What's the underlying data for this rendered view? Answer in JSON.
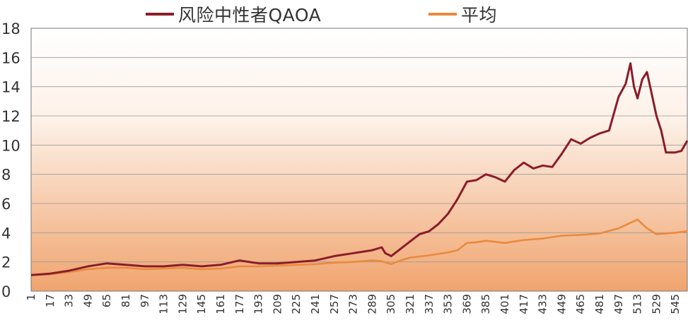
{
  "chart_data": {
    "type": "line",
    "title": "",
    "xlabel": "",
    "ylabel": "",
    "ylim": [
      0,
      18
    ],
    "yticks": [
      0,
      2,
      4,
      6,
      8,
      10,
      12,
      14,
      16,
      18
    ],
    "xlim": [
      1,
      555
    ],
    "xticks": [
      "1",
      "17",
      "33",
      "49",
      "65",
      "81",
      "97",
      "113",
      "129",
      "145",
      "161",
      "177",
      "193",
      "209",
      "225",
      "241",
      "257",
      "273",
      "289",
      "305",
      "321",
      "337",
      "353",
      "369",
      "385",
      "401",
      "417",
      "433",
      "449",
      "465",
      "481",
      "497",
      "513",
      "529",
      "545"
    ],
    "legend": "top",
    "grid": "horizontal",
    "colors": {
      "qaoa": "#8b1c2a",
      "avg": "#e98a3f",
      "bg_top": "#ffffff",
      "bg_bottom": "#f0a46e"
    },
    "series": [
      {
        "name": "风险中性者QAOA",
        "x": [
          1,
          17,
          33,
          49,
          65,
          81,
          97,
          113,
          129,
          145,
          161,
          177,
          193,
          209,
          225,
          241,
          257,
          273,
          289,
          297,
          300,
          305,
          313,
          321,
          329,
          337,
          345,
          353,
          361,
          369,
          377,
          385,
          393,
          401,
          409,
          417,
          425,
          433,
          441,
          449,
          457,
          465,
          473,
          481,
          489,
          497,
          503,
          507,
          510,
          513,
          517,
          521,
          525,
          529,
          533,
          537,
          545,
          550,
          555
        ],
        "y": [
          1.1,
          1.2,
          1.4,
          1.7,
          1.9,
          1.8,
          1.7,
          1.7,
          1.8,
          1.7,
          1.8,
          2.1,
          1.9,
          1.9,
          2.0,
          2.1,
          2.4,
          2.6,
          2.8,
          3.0,
          2.6,
          2.4,
          2.9,
          3.4,
          3.9,
          4.1,
          4.6,
          5.3,
          6.3,
          7.5,
          7.6,
          8.0,
          7.8,
          7.5,
          8.3,
          8.8,
          8.4,
          8.6,
          8.5,
          9.4,
          10.4,
          10.1,
          10.5,
          10.8,
          11.0,
          13.3,
          14.2,
          15.6,
          14.0,
          13.2,
          14.5,
          15.0,
          13.5,
          12.0,
          11.0,
          9.5,
          9.5,
          9.6,
          10.3
        ]
      },
      {
        "name": "平均",
        "x": [
          1,
          17,
          33,
          49,
          65,
          81,
          97,
          113,
          129,
          145,
          161,
          177,
          193,
          209,
          225,
          241,
          257,
          273,
          289,
          297,
          305,
          313,
          321,
          337,
          353,
          361,
          369,
          377,
          385,
          401,
          417,
          433,
          449,
          465,
          481,
          497,
          505,
          513,
          521,
          529,
          545,
          555
        ],
        "y": [
          1.1,
          1.15,
          1.3,
          1.5,
          1.6,
          1.6,
          1.5,
          1.55,
          1.6,
          1.5,
          1.55,
          1.7,
          1.7,
          1.75,
          1.8,
          1.85,
          1.95,
          2.0,
          2.1,
          2.05,
          1.85,
          2.1,
          2.3,
          2.45,
          2.65,
          2.8,
          3.3,
          3.35,
          3.45,
          3.3,
          3.5,
          3.6,
          3.8,
          3.85,
          3.95,
          4.3,
          4.6,
          4.9,
          4.3,
          3.9,
          4.0,
          4.1
        ]
      }
    ]
  }
}
